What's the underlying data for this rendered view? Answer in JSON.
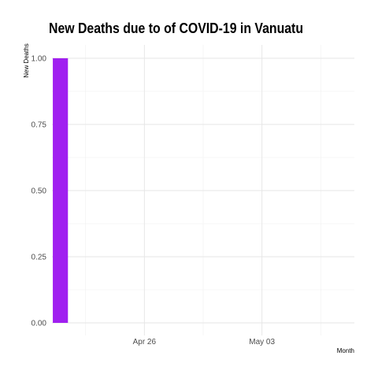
{
  "chart_data": {
    "type": "bar",
    "title": "New Deaths due to of COVID-19 in Vanuatu",
    "xlabel": "Month",
    "ylabel": "New Deaths",
    "x": [
      "2020-04-21",
      "2020-04-22",
      "2020-04-23",
      "2020-04-24",
      "2020-04-25",
      "2020-04-26",
      "2020-04-27",
      "2020-04-28",
      "2020-04-29",
      "2020-04-30",
      "2020-05-01",
      "2020-05-02",
      "2020-05-03",
      "2020-05-04",
      "2020-05-05",
      "2020-05-06",
      "2020-05-07",
      "2020-05-08"
    ],
    "values": [
      1,
      0,
      0,
      0,
      0,
      0,
      0,
      0,
      0,
      0,
      0,
      0,
      0,
      0,
      0,
      0,
      0,
      0
    ],
    "ylim": [
      0,
      1
    ],
    "y_ticks": [
      "0.00",
      "0.25",
      "0.50",
      "0.75",
      "1.00"
    ],
    "x_ticks": [
      {
        "date": "2020-04-26",
        "label": "Apr 26"
      },
      {
        "date": "2020-05-03",
        "label": "May 03"
      }
    ],
    "bar_color": "#a020f0",
    "grid": true,
    "legend": "none"
  }
}
